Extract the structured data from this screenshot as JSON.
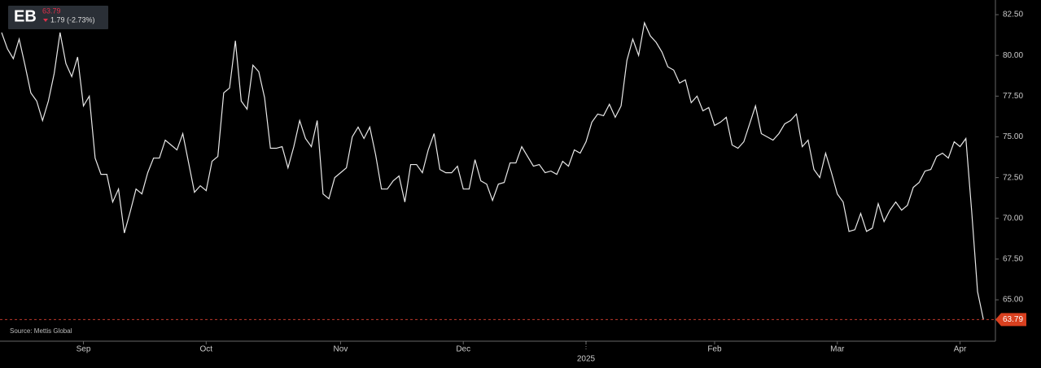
{
  "chart_data": {
    "type": "line",
    "title": "EB",
    "change": "1.79 (-2.73%)",
    "source": "Source: Mettis Global",
    "categories": [
      null,
      null,
      null,
      null,
      null,
      null,
      null,
      null,
      null,
      null,
      null,
      null,
      null,
      null,
      "Sep",
      null,
      null,
      null,
      null,
      null,
      null,
      null,
      null,
      null,
      null,
      null,
      null,
      null,
      null,
      null,
      null,
      null,
      null,
      null,
      null,
      "Oct",
      null,
      null,
      null,
      null,
      null,
      null,
      null,
      null,
      null,
      null,
      null,
      null,
      null,
      null,
      null,
      null,
      null,
      null,
      null,
      null,
      null,
      null,
      "Nov",
      null,
      null,
      null,
      null,
      null,
      null,
      null,
      null,
      null,
      null,
      null,
      null,
      null,
      null,
      null,
      null,
      null,
      null,
      null,
      null,
      "Dec",
      null,
      null,
      null,
      null,
      null,
      null,
      null,
      null,
      null,
      null,
      null,
      null,
      null,
      null,
      null,
      null,
      null,
      null,
      null,
      null,
      "2025",
      null,
      null,
      null,
      null,
      null,
      null,
      null,
      null,
      null,
      null,
      null,
      null,
      null,
      null,
      null,
      null,
      null,
      null,
      null,
      null,
      null,
      "Feb",
      null,
      null,
      null,
      null,
      null,
      null,
      null,
      null,
      null,
      null,
      null,
      null,
      null,
      null,
      null,
      null,
      null,
      null,
      null,
      null,
      "Mar",
      null,
      null,
      null,
      null,
      null,
      null,
      null,
      null,
      null,
      null,
      null,
      null,
      null,
      null,
      null,
      null,
      null,
      null,
      null,
      null,
      "Apr",
      null,
      null,
      null,
      null
    ],
    "series": [
      {
        "name": "EB",
        "color": "#e8e8e8",
        "values": [
          81.4,
          80.4,
          79.8,
          81.0,
          79.4,
          77.7,
          77.2,
          76.0,
          77.2,
          78.9,
          81.4,
          79.5,
          78.7,
          79.9,
          76.9,
          77.5,
          73.7,
          72.7,
          72.7,
          71.0,
          71.8,
          69.1,
          70.4,
          71.8,
          71.5,
          72.8,
          73.7,
          73.7,
          74.8,
          74.5,
          74.2,
          75.2,
          73.4,
          71.6,
          72.0,
          71.7,
          73.5,
          73.8,
          77.7,
          78.0,
          80.9,
          77.2,
          76.7,
          79.4,
          79.0,
          77.4,
          74.3,
          74.3,
          74.4,
          73.1,
          74.4,
          76.0,
          74.9,
          74.4,
          76.0,
          71.5,
          71.2,
          72.5,
          72.8,
          73.1,
          75.0,
          75.6,
          74.9,
          75.6,
          73.9,
          71.8,
          71.8,
          72.3,
          72.6,
          71.0,
          73.3,
          73.3,
          72.8,
          74.2,
          75.2,
          73.0,
          72.8,
          72.8,
          73.2,
          71.8,
          71.8,
          73.6,
          72.3,
          72.1,
          71.1,
          72.1,
          72.2,
          73.4,
          73.4,
          74.4,
          73.8,
          73.2,
          73.3,
          72.8,
          72.9,
          72.7,
          73.5,
          73.2,
          74.2,
          74.0,
          74.7,
          75.9,
          76.4,
          76.3,
          77.0,
          76.2,
          76.9,
          79.7,
          81.0,
          80.0,
          82.0,
          81.2,
          80.8,
          80.2,
          79.3,
          79.1,
          78.3,
          78.5,
          77.1,
          77.5,
          76.6,
          76.8,
          75.7,
          75.9,
          76.2,
          74.5,
          74.3,
          74.7,
          75.8,
          76.9,
          75.2,
          75.0,
          74.8,
          75.2,
          75.8,
          76.0,
          76.4,
          74.4,
          74.8,
          73.0,
          72.5,
          74.0,
          72.8,
          71.5,
          71.0,
          69.2,
          69.3,
          70.3,
          69.2,
          69.4,
          70.9,
          69.8,
          70.5,
          71.0,
          70.5,
          70.8,
          71.9,
          72.2,
          72.9,
          73.0,
          73.8,
          74.0,
          73.7,
          74.7,
          74.4,
          74.9,
          70.4,
          65.5,
          63.79
        ]
      }
    ],
    "ylim": [
      62.56,
      83.4
    ],
    "yticks": [
      {
        "value": 65,
        "label": "65.00"
      },
      {
        "value": 67.5,
        "label": "67.50"
      },
      {
        "value": 70,
        "label": "70.00"
      },
      {
        "value": 72.5,
        "label": "72.50"
      },
      {
        "value": 75,
        "label": "75.00"
      },
      {
        "value": 77.5,
        "label": "77.50"
      },
      {
        "value": 80,
        "label": "80.00"
      },
      {
        "value": 82.5,
        "label": "82.50"
      }
    ],
    "grid": false
  }
}
